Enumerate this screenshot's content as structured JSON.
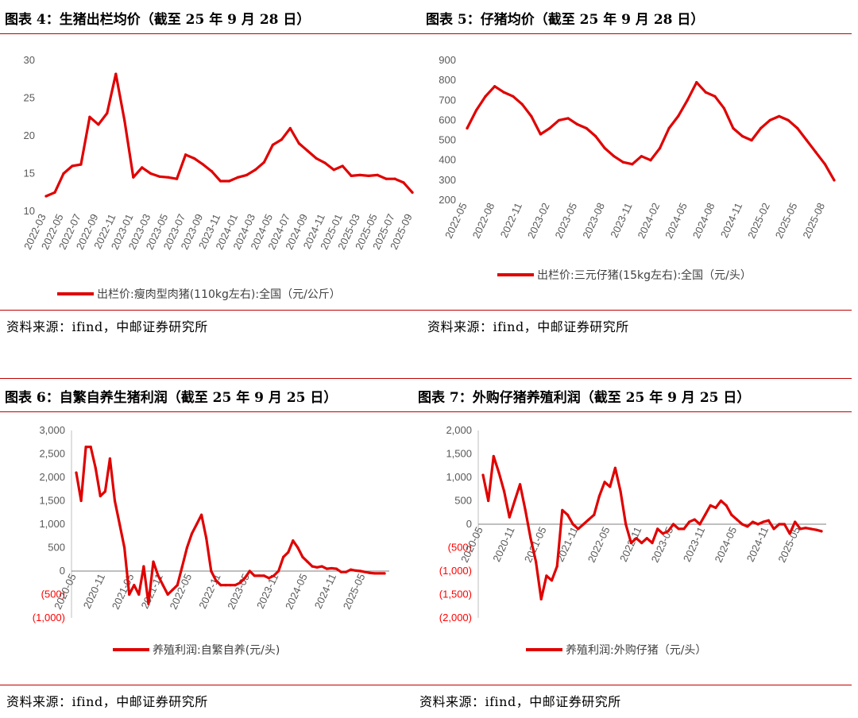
{
  "charts": [
    {
      "title": "图表 4：生猪出栏均价（截至 25 年 9 月 28 日）",
      "source": "资料来源：ifind，中邮证券研究所",
      "legend": "出栏价:瘦肉型肉猪(110kg左右):全国（元/公斤）",
      "color": "#e00000"
    },
    {
      "title": "图表 5：仔猪均价（截至 25 年 9 月 28 日）",
      "source": "资料来源：ifind，中邮证券研究所",
      "legend": "出栏价:三元仔猪(15kg左右):全国（元/头）",
      "color": "#e00000"
    },
    {
      "title": "图表 6：自繁自养生猪利润（截至 25 年 9 月 25 日）",
      "source": "资料来源：ifind，中邮证券研究所",
      "legend": "养殖利润:自繁自养(元/头)",
      "color": "#e00000"
    },
    {
      "title": "图表 7：外购仔猪养殖利润（截至 25 年 9 月 25 日）",
      "source": "资料来源：ifind，中邮证券研究所",
      "legend": "养殖利润:外购仔猪（元/头）",
      "color": "#e00000"
    }
  ],
  "chart_data": [
    {
      "type": "line",
      "title": "图表 4：生猪出栏均价（截至 25 年 9 月 28 日）",
      "ylim": [
        10,
        30
      ],
      "yticks": [
        "10",
        "15",
        "20",
        "25",
        "30"
      ],
      "xticks": [
        "2022-03",
        "2022-05",
        "2022-07",
        "2022-09",
        "2022-11",
        "2023-01",
        "2023-03",
        "2023-05",
        "2023-07",
        "2023-09",
        "2023-11",
        "2024-01",
        "2024-03",
        "2024-05",
        "2024-07",
        "2024-09",
        "2024-11",
        "2025-01",
        "2025-03",
        "2025-05",
        "2025-07",
        "2025-09"
      ],
      "x": [
        "2022-03",
        "2022-04",
        "2022-05",
        "2022-06",
        "2022-07",
        "2022-08",
        "2022-09",
        "2022-10",
        "2022-11",
        "2022-12",
        "2023-01",
        "2023-02",
        "2023-03",
        "2023-04",
        "2023-05",
        "2023-06",
        "2023-07",
        "2023-08",
        "2023-09",
        "2023-10",
        "2023-11",
        "2023-12",
        "2024-01",
        "2024-02",
        "2024-03",
        "2024-04",
        "2024-05",
        "2024-06",
        "2024-07",
        "2024-08",
        "2024-09",
        "2024-10",
        "2024-11",
        "2024-12",
        "2025-01",
        "2025-02",
        "2025-03",
        "2025-04",
        "2025-05",
        "2025-06",
        "2025-07",
        "2025-08",
        "2025-09"
      ],
      "series": [
        {
          "name": "出栏价:瘦肉型肉猪(110kg左右):全国（元/公斤）",
          "values": [
            12,
            12.5,
            15,
            16,
            16.2,
            22.5,
            21.5,
            23,
            28.2,
            22,
            14.5,
            15.8,
            15,
            14.6,
            14.5,
            14.3,
            17.5,
            17,
            16.2,
            15.3,
            14,
            14,
            14.5,
            14.8,
            15.5,
            16.5,
            18.8,
            19.5,
            21,
            19,
            18,
            17,
            16.4,
            15.5,
            16,
            14.7,
            14.8,
            14.7,
            14.8,
            14.3,
            14.3,
            13.8,
            12.5
          ]
        }
      ]
    },
    {
      "type": "line",
      "title": "图表 5：仔猪均价（截至 25 年 9 月 28 日）",
      "ylim": [
        200,
        900
      ],
      "yticks": [
        "200",
        "300",
        "400",
        "500",
        "600",
        "700",
        "800",
        "900"
      ],
      "xticks": [
        "2022-05",
        "2022-08",
        "2022-11",
        "2023-02",
        "2023-05",
        "2023-08",
        "2023-11",
        "2024-02",
        "2024-05",
        "2024-08",
        "2024-11",
        "2025-02",
        "2025-05",
        "2025-08"
      ],
      "x": [
        "2022-05",
        "2022-06",
        "2022-07",
        "2022-08",
        "2022-09",
        "2022-10",
        "2022-11",
        "2022-12",
        "2023-01",
        "2023-02",
        "2023-03",
        "2023-04",
        "2023-05",
        "2023-06",
        "2023-07",
        "2023-08",
        "2023-09",
        "2023-10",
        "2023-11",
        "2023-12",
        "2024-01",
        "2024-02",
        "2024-03",
        "2024-04",
        "2024-05",
        "2024-06",
        "2024-07",
        "2024-08",
        "2024-09",
        "2024-10",
        "2024-11",
        "2024-12",
        "2025-01",
        "2025-02",
        "2025-03",
        "2025-04",
        "2025-05",
        "2025-06",
        "2025-07",
        "2025-08",
        "2025-09"
      ],
      "series": [
        {
          "name": "出栏价:三元仔猪(15kg左右):全国（元/头）",
          "values": [
            560,
            650,
            720,
            770,
            740,
            720,
            680,
            620,
            530,
            560,
            600,
            610,
            580,
            560,
            520,
            460,
            420,
            390,
            380,
            420,
            400,
            460,
            560,
            620,
            700,
            790,
            740,
            720,
            660,
            560,
            520,
            500,
            560,
            600,
            620,
            600,
            560,
            500,
            440,
            380,
            300
          ]
        }
      ]
    },
    {
      "type": "line",
      "title": "图表 6：自繁自养生猪利润（截至 25 年 9 月 25 日）",
      "ylim": [
        -1000,
        3000
      ],
      "yticks": [
        "(1,000)",
        "(500)",
        "0",
        "500",
        "1,000",
        "1,500",
        "2,000",
        "2,500",
        "3,000"
      ],
      "xticks": [
        "2020-05",
        "2020-11",
        "2021-05",
        "2021-11",
        "2022-05",
        "2022-11",
        "2023-05",
        "2023-11",
        "2024-05",
        "2024-11",
        "2025-05"
      ],
      "x": [
        "2020-05",
        "2020-06",
        "2020-07",
        "2020-08",
        "2020-09",
        "2020-10",
        "2020-11",
        "2020-12",
        "2021-01",
        "2021-02",
        "2021-03",
        "2021-04",
        "2021-05",
        "2021-06",
        "2021-07",
        "2021-08",
        "2021-09",
        "2021-10",
        "2021-11",
        "2021-12",
        "2022-01",
        "2022-02",
        "2022-03",
        "2022-04",
        "2022-05",
        "2022-06",
        "2022-07",
        "2022-08",
        "2022-09",
        "2022-10",
        "2022-11",
        "2022-12",
        "2023-01",
        "2023-02",
        "2023-03",
        "2023-04",
        "2023-05",
        "2023-06",
        "2023-07",
        "2023-08",
        "2023-09",
        "2023-10",
        "2023-11",
        "2023-12",
        "2024-01",
        "2024-02",
        "2024-03",
        "2024-04",
        "2024-05",
        "2024-06",
        "2024-07",
        "2024-08",
        "2024-09",
        "2024-10",
        "2024-11",
        "2024-12",
        "2025-01",
        "2025-02",
        "2025-03",
        "2025-04",
        "2025-05",
        "2025-06",
        "2025-07",
        "2025-08",
        "2025-09"
      ],
      "series": [
        {
          "name": "养殖利润:自繁自养(元/头)",
          "values": [
            2100,
            1500,
            2650,
            2650,
            2200,
            1600,
            1700,
            2400,
            1500,
            1000,
            500,
            -500,
            -300,
            -500,
            100,
            -700,
            200,
            -100,
            -300,
            -500,
            -400,
            -300,
            100,
            500,
            800,
            1000,
            1200,
            700,
            0,
            -200,
            -300,
            -300,
            -300,
            -300,
            -250,
            -150,
            0,
            -100,
            -100,
            -100,
            -150,
            -100,
            0,
            300,
            400,
            650,
            500,
            300,
            200,
            100,
            80,
            100,
            50,
            60,
            50,
            -20,
            -20,
            30,
            10,
            0,
            -20,
            -40,
            -50,
            -50,
            -50
          ]
        }
      ]
    },
    {
      "type": "line",
      "title": "图表 7：外购仔猪养殖利润（截至 25 年 9 月 25 日）",
      "ylim": [
        -2000,
        2000
      ],
      "yticks": [
        "(2,000)",
        "(1,500)",
        "(1,000)",
        "(500)",
        "0",
        "500",
        "1,000",
        "1,500",
        "2,000"
      ],
      "xticks": [
        "2020-05",
        "2020-11",
        "2021-05",
        "2021-11",
        "2022-05",
        "2022-11",
        "2023-05",
        "2023-11",
        "2024-05",
        "2024-11",
        "2025-05"
      ],
      "x": [
        "2020-05",
        "2020-06",
        "2020-07",
        "2020-08",
        "2020-09",
        "2020-10",
        "2020-11",
        "2020-12",
        "2021-01",
        "2021-02",
        "2021-03",
        "2021-04",
        "2021-05",
        "2021-06",
        "2021-07",
        "2021-08",
        "2021-09",
        "2021-10",
        "2021-11",
        "2021-12",
        "2022-01",
        "2022-02",
        "2022-03",
        "2022-04",
        "2022-05",
        "2022-06",
        "2022-07",
        "2022-08",
        "2022-09",
        "2022-10",
        "2022-11",
        "2022-12",
        "2023-01",
        "2023-02",
        "2023-03",
        "2023-04",
        "2023-05",
        "2023-06",
        "2023-07",
        "2023-08",
        "2023-09",
        "2023-10",
        "2023-11",
        "2023-12",
        "2024-01",
        "2024-02",
        "2024-03",
        "2024-04",
        "2024-05",
        "2024-06",
        "2024-07",
        "2024-08",
        "2024-09",
        "2024-10",
        "2024-11",
        "2024-12",
        "2025-01",
        "2025-02",
        "2025-03",
        "2025-04",
        "2025-05",
        "2025-06",
        "2025-07",
        "2025-08",
        "2025-09"
      ],
      "series": [
        {
          "name": "养殖利润:外购仔猪（元/头）",
          "values": [
            1050,
            500,
            1450,
            1100,
            700,
            150,
            500,
            850,
            300,
            -300,
            -800,
            -1600,
            -1100,
            -1200,
            -900,
            300,
            200,
            0,
            -100,
            0,
            100,
            200,
            600,
            900,
            800,
            1200,
            700,
            0,
            -400,
            -300,
            -400,
            -300,
            -400,
            -100,
            -200,
            -150,
            0,
            -100,
            -100,
            50,
            100,
            0,
            200,
            400,
            350,
            500,
            400,
            200,
            100,
            0,
            -50,
            50,
            0,
            50,
            80,
            -100,
            0,
            0,
            -200,
            50,
            -100,
            -80,
            -100,
            -120,
            -150
          ]
        }
      ]
    }
  ]
}
